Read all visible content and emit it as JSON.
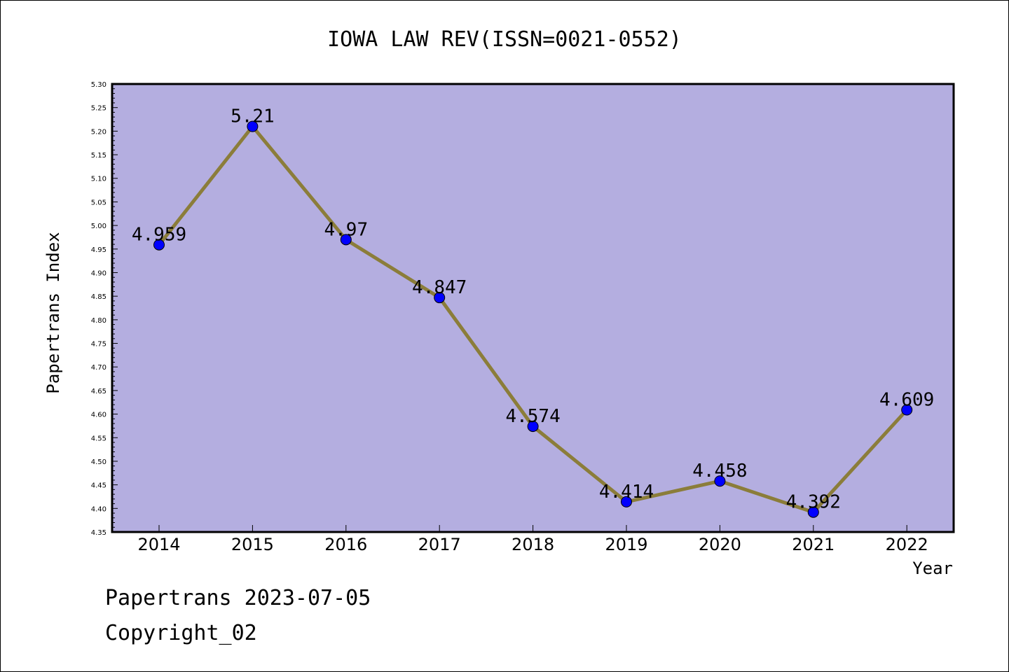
{
  "chart_data": {
    "type": "line",
    "title": "IOWA LAW REV(ISSN=0021-0552)",
    "xlabel": "Year",
    "ylabel": "Papertrans Index",
    "categories": [
      "2014",
      "2015",
      "2016",
      "2017",
      "2018",
      "2019",
      "2020",
      "2021",
      "2022"
    ],
    "series": [
      {
        "values": [
          4.959,
          5.21,
          4.97,
          4.847,
          4.574,
          4.414,
          4.458,
          4.392,
          4.609
        ],
        "labels": [
          "4.959",
          "5.21",
          "4.97",
          "4.847",
          "4.574",
          "4.414",
          "4.458",
          "4.392",
          "4.609"
        ],
        "line_color": "#8b7d3a",
        "marker_color": "#0000ff"
      }
    ],
    "ylim": [
      4.35,
      5.3
    ],
    "yticks": [
      "4.35",
      "4.40",
      "4.45",
      "4.50",
      "4.55",
      "4.60",
      "4.65",
      "4.70",
      "4.75",
      "4.80",
      "4.85",
      "4.90",
      "4.95",
      "5.00",
      "5.05",
      "5.10",
      "5.15",
      "5.20",
      "5.25",
      "5.30"
    ],
    "grid": false,
    "plot_background": "#b4aee0"
  },
  "footer": {
    "line1": "Papertrans 2023-07-05",
    "line2": "Copyright_02"
  }
}
